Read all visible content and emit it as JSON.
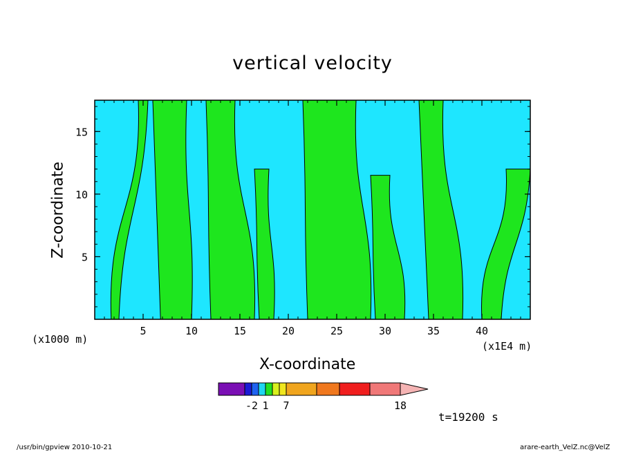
{
  "chart_data": {
    "type": "heatmap",
    "title": "vertical velocity",
    "xlabel": "X-coordinate",
    "ylabel": "Z-coordinate",
    "x_unit_left": "(x1000 m)",
    "x_unit_right": "(x1E4 m)",
    "xlim": [
      0,
      45
    ],
    "ylim": [
      0,
      17.5
    ],
    "x_ticks": [
      "5",
      "10",
      "15",
      "20",
      "25",
      "30",
      "35",
      "40"
    ],
    "x_tick_values": [
      5,
      10,
      15,
      20,
      25,
      30,
      35,
      40
    ],
    "y_ticks": [
      "5",
      "10",
      "15"
    ],
    "y_tick_values": [
      5,
      10,
      15
    ],
    "time_label": "t=19200 s",
    "colorbar": {
      "labels": [
        "-2",
        "1",
        "7",
        "18"
      ],
      "colors": [
        "#7a0fb4",
        "#1b1bd6",
        "#1f62f0",
        "#1fd6f0",
        "#22e022",
        "#d8f01e",
        "#f0e61e",
        "#f0a51e",
        "#f0781e",
        "#f01e1e",
        "#f07878",
        "#f5b4b4"
      ]
    },
    "field_colors": {
      "positive": "#1ee61e",
      "negative": "#1ee6ff"
    },
    "green_bands": [
      {
        "x_bottom": [
          1.7,
          2.5
        ],
        "x_top": [
          4.5,
          5.5
        ],
        "z_top": 17.5
      },
      {
        "x_bottom": [
          6.8,
          10.0
        ],
        "x_top": [
          6.0,
          9.5
        ],
        "z_top": 17.5
      },
      {
        "x_bottom": [
          12.0,
          16.5
        ],
        "x_top": [
          11.5,
          14.5
        ],
        "z_top": 17.5
      },
      {
        "x_bottom": [
          17.0,
          18.5
        ],
        "x_top": [
          16.5,
          18.0
        ],
        "z_top": 12.0
      },
      {
        "x_bottom": [
          22.0,
          28.5
        ],
        "x_top": [
          21.5,
          27.0
        ],
        "z_top": 17.5
      },
      {
        "x_bottom": [
          29.0,
          32.0
        ],
        "x_top": [
          28.5,
          30.5
        ],
        "z_top": 11.5
      },
      {
        "x_bottom": [
          34.5,
          38.0
        ],
        "x_top": [
          33.5,
          36.0
        ],
        "z_top": 17.5
      },
      {
        "x_bottom": [
          40.0,
          42.0
        ],
        "x_top": [
          42.5,
          45.0
        ],
        "z_top": 12.0
      }
    ]
  },
  "footer": {
    "left": "/usr/bin/gpview   2010-10-21",
    "right": "arare-earth_VelZ.nc@VelZ"
  }
}
